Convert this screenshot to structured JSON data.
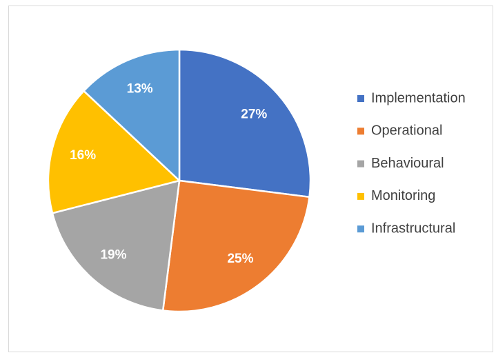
{
  "chart_data": {
    "type": "pie",
    "categories": [
      "Implementation",
      "Operational",
      "Behavioural",
      "Monitoring",
      "Infrastructural"
    ],
    "values": [
      27,
      25,
      19,
      16,
      13
    ],
    "value_labels": [
      "27%",
      "25%",
      "19%",
      "16%",
      "13%"
    ],
    "colors": [
      "#4472c4",
      "#ed7d31",
      "#a5a5a5",
      "#ffc000",
      "#5b9bd5"
    ],
    "legend": "right"
  }
}
